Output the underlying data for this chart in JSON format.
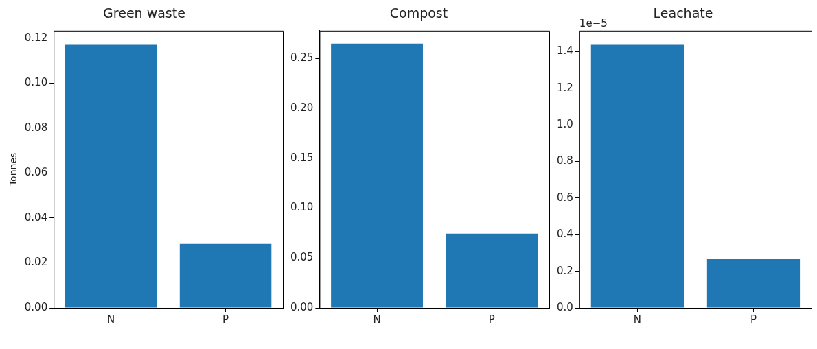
{
  "chart_data": [
    {
      "type": "bar",
      "title": "Green waste",
      "ylabel": "Tonnes",
      "categories": [
        "N",
        "P"
      ],
      "values": [
        0.1174,
        0.0285
      ],
      "color": "#1f77b4",
      "ylim": [
        0,
        0.1234
      ],
      "yticks": [
        {
          "value": 0,
          "label": "0.00"
        },
        {
          "value": 0.02,
          "label": "0.02"
        },
        {
          "value": 0.04,
          "label": "0.04"
        },
        {
          "value": 0.06,
          "label": "0.06"
        },
        {
          "value": 0.08,
          "label": "0.08"
        },
        {
          "value": 0.1,
          "label": "0.10"
        },
        {
          "value": 0.12,
          "label": "0.12"
        }
      ],
      "grid": false
    },
    {
      "type": "bar",
      "title": "Compost",
      "categories": [
        "N",
        "P"
      ],
      "values": [
        0.2647,
        0.0744
      ],
      "color": "#1f77b4",
      "ylim": [
        0,
        0.2778
      ],
      "yticks": [
        {
          "value": 0,
          "label": "0.00"
        },
        {
          "value": 0.05,
          "label": "0.05"
        },
        {
          "value": 0.1,
          "label": "0.10"
        },
        {
          "value": 0.15,
          "label": "0.15"
        },
        {
          "value": 0.2,
          "label": "0.20"
        },
        {
          "value": 0.25,
          "label": "0.25"
        }
      ],
      "grid": false
    },
    {
      "type": "bar",
      "title": "Leachate",
      "annotations": [
        "1e−5"
      ],
      "categories": [
        "N",
        "P"
      ],
      "values": [
        1.441,
        0.266
      ],
      "color": "#1f77b4",
      "ylim": [
        0,
        1.515
      ],
      "yticks": [
        {
          "value": 0,
          "label": "0.0"
        },
        {
          "value": 0.2,
          "label": "0.2"
        },
        {
          "value": 0.4,
          "label": "0.4"
        },
        {
          "value": 0.6,
          "label": "0.6"
        },
        {
          "value": 0.8,
          "label": "0.8"
        },
        {
          "value": 1,
          "label": "1.0"
        },
        {
          "value": 1.2,
          "label": "1.2"
        },
        {
          "value": 1.4,
          "label": "1.4"
        }
      ],
      "grid": false
    }
  ]
}
